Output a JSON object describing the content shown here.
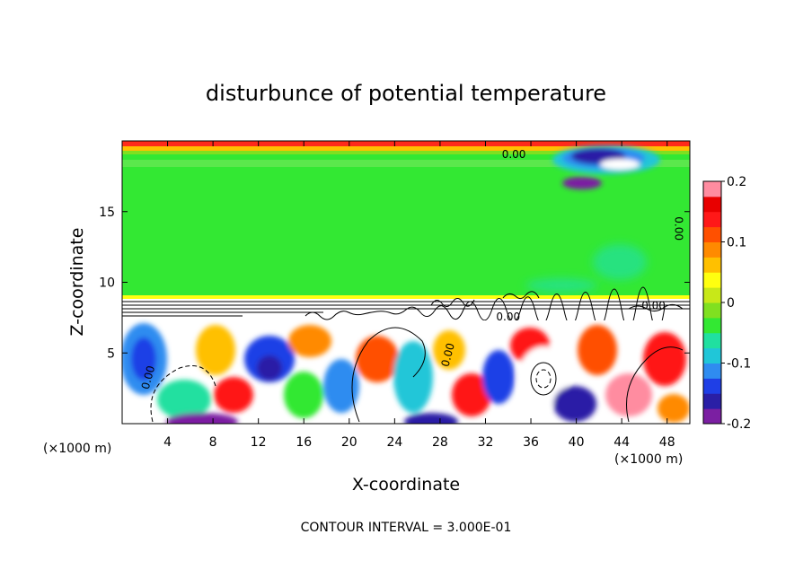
{
  "chart_data": {
    "type": "heatmap",
    "title": "disturbunce of potential temperature",
    "xlabel": "X-coordinate",
    "ylabel": "Z-coordinate",
    "x_unit_label": "(×1000 m)",
    "x_unit_label_right": "(×1000 m)",
    "xlim": [
      0,
      50
    ],
    "ylim": [
      0,
      20
    ],
    "x_ticks": [
      4,
      8,
      12,
      16,
      20,
      24,
      28,
      32,
      36,
      40,
      44,
      48
    ],
    "y_ticks": [
      5,
      10,
      15
    ],
    "colorbar": {
      "min": -0.2,
      "max": 0.2,
      "ticks": [
        {
          "value": 0.2,
          "label": "0.2"
        },
        {
          "value": 0.1,
          "label": "0.1"
        },
        {
          "value": 0,
          "label": "0"
        },
        {
          "value": -0.1,
          "label": "-0.1"
        },
        {
          "value": -0.2,
          "label": "-0.2"
        }
      ],
      "colors": [
        "#7b1fa2",
        "#2a1fa6",
        "#1f3fe6",
        "#2f8cf0",
        "#20c6d8",
        "#20e0a0",
        "#33e833",
        "#80e020",
        "#c8e818",
        "#ffff10",
        "#ffc000",
        "#ff8a00",
        "#ff5000",
        "#ff1818",
        "#e80000",
        "#ff8ca0"
      ]
    },
    "contour_labels": [
      {
        "text": "0.00",
        "x": 34.5,
        "z": 18.8
      },
      {
        "text": "0.00",
        "x": 48.7,
        "z": 13.8
      },
      {
        "text": "0.00",
        "x": 34.0,
        "z": 7.3
      },
      {
        "text": "0.00",
        "x": 46.8,
        "z": 8.1
      },
      {
        "text": "0.00",
        "x": 29.0,
        "z": 4.8
      },
      {
        "text": "0.00",
        "x": 2.6,
        "z": 3.2
      }
    ],
    "annotation": "CONTOUR INTERVAL = 3.000E-01"
  }
}
